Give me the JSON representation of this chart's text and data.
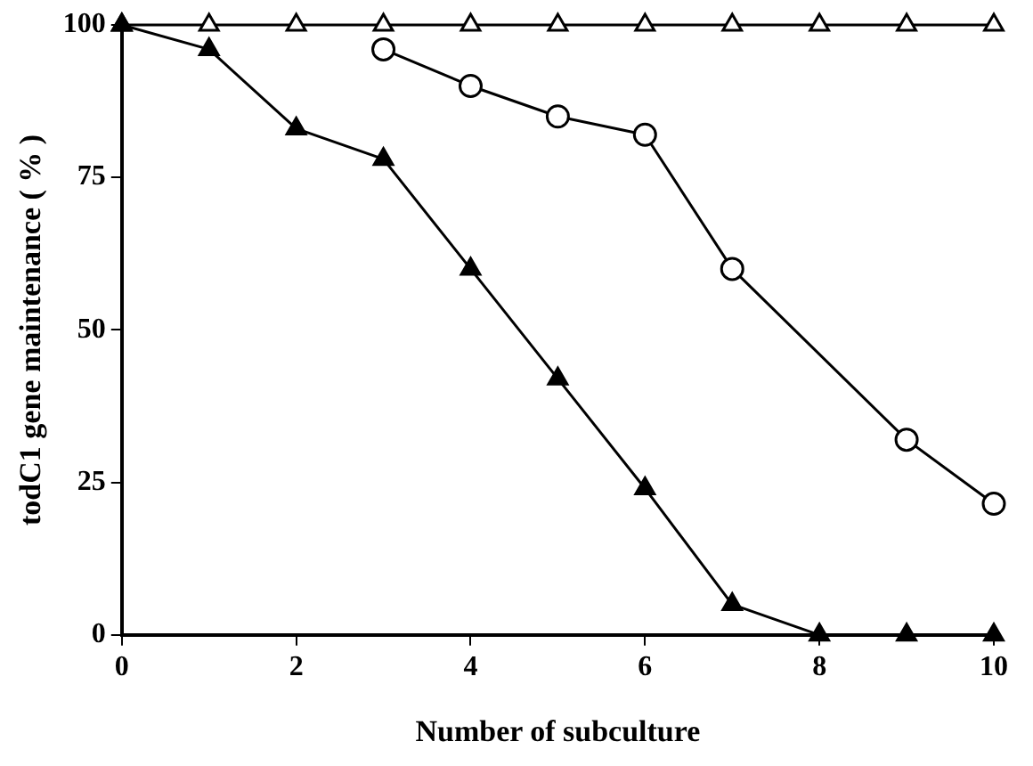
{
  "chart_data": {
    "type": "line",
    "xlabel": "Number of subculture",
    "ylabel": "todC1 gene maintenance ( % )",
    "x": [
      0,
      1,
      2,
      3,
      4,
      5,
      6,
      7,
      8,
      9,
      10
    ],
    "series": [
      {
        "color": "#000000",
        "marker": "circle",
        "colors": [
          "#ffffff",
          "#ffffff",
          "#ffffff",
          "#ffffff",
          "#ffffff",
          "#ffffff",
          "#ffffff",
          "#ffffff",
          "#ffffff",
          "#ffffff",
          "#ffffff"
        ],
        "values": [
          null,
          null,
          null,
          96,
          90,
          85,
          82,
          60,
          null,
          32,
          21.5
        ]
      },
      {
        "color": "#000000",
        "marker": "triangle",
        "values": [
          100,
          96,
          83,
          78,
          60,
          42,
          24,
          5,
          0,
          0,
          0
        ]
      },
      {
        "color": "#000000",
        "marker": "triangle",
        "colors": [
          "#ffffff",
          "#ffffff",
          "#ffffff",
          "#ffffff",
          "#ffffff",
          "#ffffff",
          "#ffffff",
          "#ffffff",
          "#ffffff",
          "#ffffff",
          "#ffffff"
        ],
        "values": [
          100,
          100,
          100,
          100,
          100,
          100,
          100,
          100,
          100,
          100,
          100
        ]
      }
    ],
    "xlim": [
      0,
      10
    ],
    "xticks": [
      0,
      2,
      4,
      6,
      8,
      10
    ],
    "ylim": [
      0,
      100
    ],
    "yticks": [
      0,
      25,
      50,
      75,
      100
    ],
    "grid": false,
    "legend": false
  }
}
